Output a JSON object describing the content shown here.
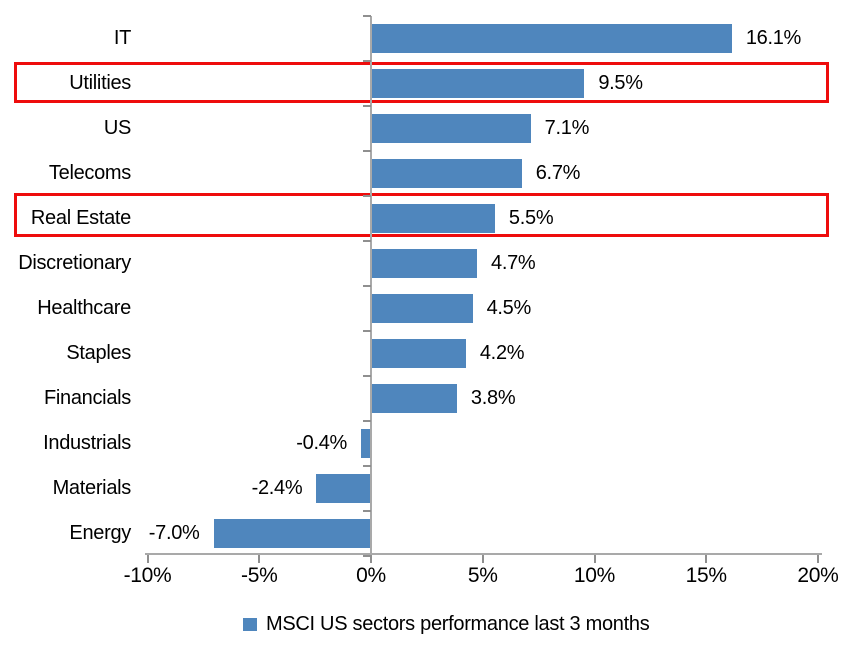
{
  "chart_data": {
    "type": "bar",
    "orientation": "horizontal",
    "title": "",
    "categories": [
      "IT",
      "Utilities",
      "US",
      "Telecoms",
      "Real Estate",
      "Discretionary",
      "Healthcare",
      "Staples",
      "Financials",
      "Industrials",
      "Materials",
      "Energy"
    ],
    "values": [
      16.1,
      9.5,
      7.1,
      6.7,
      5.5,
      4.7,
      4.5,
      4.2,
      3.8,
      -0.4,
      -2.4,
      -7.0
    ],
    "value_labels": [
      "16.1%",
      "9.5%",
      "7.1%",
      "6.7%",
      "5.5%",
      "4.7%",
      "4.5%",
      "4.2%",
      "3.8%",
      "-0.4%",
      "-2.4%",
      "-7.0%"
    ],
    "x_ticks": [
      -10,
      -5,
      0,
      5,
      10,
      15,
      20
    ],
    "x_tick_labels": [
      "-10%",
      "-5%",
      "0%",
      "5%",
      "10%",
      "15%",
      "20%"
    ],
    "xlim": [
      -10,
      20
    ],
    "grid": false,
    "highlighted_categories": [
      "Utilities",
      "Real Estate"
    ],
    "legend_position": "bottom",
    "legend": [
      {
        "label": "MSCI US sectors performance last 3 months",
        "color": "#4f86bd"
      }
    ],
    "colors": {
      "bar": "#4f86bd",
      "highlight_box": "#ee0c0c",
      "axis": "#a9a9a9",
      "text": "#000000"
    }
  }
}
